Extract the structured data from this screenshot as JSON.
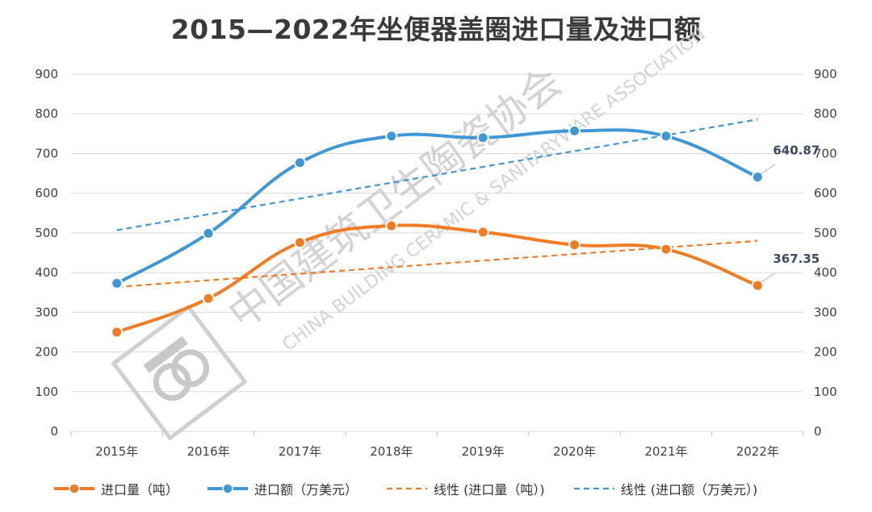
{
  "colors": {
    "import_volume": "#f07c24",
    "import_value": "#3f97d6",
    "grid": "#d9d9d9",
    "text": "#404040"
  },
  "chart_data": {
    "type": "line",
    "title": "2015—2022年坐便器盖圈进口量及进口额",
    "categories": [
      "2015年",
      "2016年",
      "2017年",
      "2018年",
      "2019年",
      "2020年",
      "2021年",
      "2022年"
    ],
    "ylim": [
      0,
      900
    ],
    "yticks": [
      "0",
      "100",
      "200",
      "300",
      "400",
      "500",
      "600",
      "700",
      "800",
      "900"
    ],
    "y2lim": [
      0,
      900
    ],
    "y2ticks": [
      "0",
      "100",
      "200",
      "300",
      "400",
      "500",
      "600",
      "700",
      "800",
      "900"
    ],
    "grid": true,
    "legend_position": "bottom",
    "series": [
      {
        "name": "进口量（吨）",
        "values": [
          250,
          335,
          476,
          518,
          502,
          470,
          459,
          367.35
        ],
        "style": "solid-marker",
        "color": "#f07c24"
      },
      {
        "name": "进口额（万美元）",
        "values": [
          373,
          499,
          677,
          744,
          740,
          757,
          744,
          640.87
        ],
        "style": "solid-marker",
        "color": "#3f97d6"
      },
      {
        "name": "线性 (进口量（吨）)",
        "values": [
          364,
          381,
          397,
          414,
          430,
          447,
          463,
          480
        ],
        "style": "dashed",
        "color": "#f07c24"
      },
      {
        "name": "线性 (进口额（万美元）)",
        "values": [
          507,
          547,
          587,
          627,
          666,
          706,
          746,
          786
        ],
        "style": "dashed",
        "color": "#3f97d6"
      }
    ],
    "data_labels": [
      {
        "series": 0,
        "index": 7,
        "text": "367.35"
      },
      {
        "series": 1,
        "index": 7,
        "text": "640.87"
      }
    ]
  },
  "watermark": {
    "cn": "中国建筑卫生陶瓷协会",
    "en": "CHINA BUILDING CERAMIC & SANITARYWARE ASSOCIATION"
  }
}
